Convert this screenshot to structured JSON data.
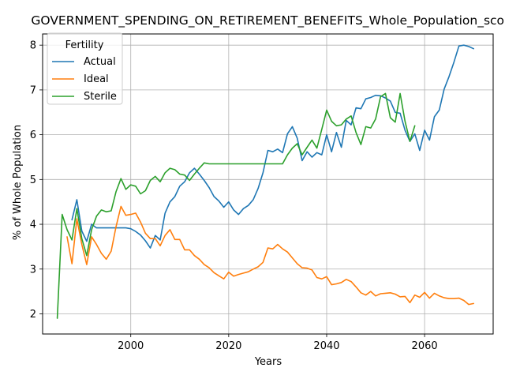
{
  "chart_data": {
    "type": "line",
    "title": "GOVERNMENT_SPENDING_ON_RETIREMENT_BENEFITS_Whole_Population_score",
    "xlabel": "Years",
    "ylabel": "% of Whole Population",
    "xlim": [
      1982,
      2074
    ],
    "ylim": [
      1.55,
      8.25
    ],
    "xticks": [
      2000,
      2020,
      2040,
      2060
    ],
    "yticks": [
      2,
      3,
      4,
      5,
      6,
      7,
      8
    ],
    "grid": true,
    "legend": {
      "title": "Fertility",
      "placement": "top-left"
    },
    "series": [
      {
        "name": "Actual",
        "color": "#1f77b4",
        "x": [
          1988,
          1989,
          1990,
          1991,
          1992,
          1993,
          1994,
          1995,
          1996,
          1997,
          1998,
          1999,
          2000,
          2001,
          2002,
          2003,
          2004,
          2005,
          2006,
          2007,
          2008,
          2009,
          2010,
          2011,
          2012,
          2013,
          2014,
          2015,
          2016,
          2017,
          2018,
          2019,
          2020,
          2021,
          2022,
          2023,
          2024,
          2025,
          2026,
          2027,
          2028,
          2029,
          2030,
          2031,
          2032,
          2033,
          2034,
          2035,
          2036,
          2037,
          2038,
          2039,
          2040,
          2041,
          2042,
          2043,
          2044,
          2045,
          2046,
          2047,
          2048,
          2049,
          2050,
          2051,
          2052,
          2053,
          2054,
          2055,
          2056,
          2057,
          2058,
          2059,
          2060,
          2061,
          2062,
          2063,
          2064,
          2065,
          2066,
          2067,
          2068,
          2069,
          2070
        ],
        "y": [
          4.1,
          4.55,
          3.85,
          3.62,
          4.0,
          3.92,
          3.92,
          3.92,
          3.92,
          3.92,
          3.92,
          3.92,
          3.9,
          3.84,
          3.76,
          3.63,
          3.47,
          3.75,
          3.65,
          4.25,
          4.5,
          4.62,
          4.85,
          4.95,
          5.15,
          5.25,
          5.12,
          4.98,
          4.82,
          4.62,
          4.52,
          4.38,
          4.5,
          4.32,
          4.22,
          4.35,
          4.42,
          4.55,
          4.8,
          5.15,
          5.65,
          5.62,
          5.68,
          5.6,
          6.02,
          6.18,
          5.92,
          5.42,
          5.62,
          5.5,
          5.6,
          5.55,
          6.0,
          5.62,
          6.05,
          5.72,
          6.32,
          6.22,
          6.6,
          6.58,
          6.8,
          6.83,
          6.88,
          6.87,
          6.82,
          6.75,
          6.5,
          6.48,
          6.1,
          5.85,
          6.02,
          5.65,
          6.1,
          5.88,
          6.4,
          6.55,
          7.02,
          7.3,
          7.62,
          7.98,
          8.0,
          7.97,
          7.92
        ]
      },
      {
        "name": "Ideal",
        "color": "#ff7f0e",
        "x": [
          1987,
          1988,
          1989,
          1990,
          1991,
          1992,
          1993,
          1994,
          1995,
          1996,
          1997,
          1998,
          1999,
          2000,
          2001,
          2002,
          2003,
          2004,
          2005,
          2006,
          2007,
          2008,
          2009,
          2010,
          2011,
          2012,
          2013,
          2014,
          2015,
          2016,
          2017,
          2018,
          2019,
          2020,
          2021,
          2022,
          2023,
          2024,
          2025,
          2026,
          2027,
          2028,
          2029,
          2030,
          2031,
          2032,
          2033,
          2034,
          2035,
          2036,
          2037,
          2038,
          2039,
          2040,
          2041,
          2042,
          2043,
          2044,
          2045,
          2046,
          2047,
          2048,
          2049,
          2050,
          2051,
          2052,
          2053,
          2054,
          2055,
          2056,
          2057,
          2058,
          2059,
          2060,
          2061,
          2062,
          2063,
          2064,
          2065,
          2066,
          2067,
          2068,
          2069,
          2070
        ],
        "y": [
          3.72,
          3.12,
          4.12,
          3.55,
          3.1,
          3.72,
          3.55,
          3.35,
          3.22,
          3.4,
          3.95,
          4.4,
          4.2,
          4.22,
          4.25,
          4.05,
          3.8,
          3.68,
          3.68,
          3.52,
          3.75,
          3.88,
          3.66,
          3.66,
          3.43,
          3.43,
          3.3,
          3.22,
          3.1,
          3.03,
          2.92,
          2.85,
          2.78,
          2.93,
          2.84,
          2.88,
          2.91,
          2.94,
          3.0,
          3.05,
          3.15,
          3.47,
          3.45,
          3.55,
          3.45,
          3.38,
          3.25,
          3.12,
          3.03,
          3.02,
          2.98,
          2.81,
          2.78,
          2.83,
          2.65,
          2.67,
          2.7,
          2.77,
          2.72,
          2.6,
          2.47,
          2.42,
          2.5,
          2.4,
          2.45,
          2.46,
          2.47,
          2.44,
          2.38,
          2.39,
          2.25,
          2.42,
          2.37,
          2.48,
          2.35,
          2.46,
          2.4,
          2.36,
          2.34,
          2.34,
          2.35,
          2.3,
          2.21,
          2.23
        ]
      },
      {
        "name": "Sterile",
        "color": "#2ca02c",
        "x": [
          1985,
          1986,
          1987,
          1988,
          1989,
          1990,
          1991,
          1992,
          1993,
          1994,
          1995,
          1996,
          1997,
          1998,
          1999,
          2000,
          2001,
          2002,
          2003,
          2004,
          2005,
          2006,
          2007,
          2008,
          2009,
          2010,
          2011,
          2012,
          2013,
          2014,
          2015,
          2016,
          2017,
          2018,
          2019,
          2020,
          2021,
          2022,
          2023,
          2024,
          2025,
          2026,
          2027,
          2028,
          2029,
          2030,
          2031,
          2032,
          2033,
          2034,
          2035,
          2036,
          2037,
          2038,
          2039,
          2040,
          2041,
          2042,
          2043,
          2044,
          2045,
          2046,
          2047,
          2048,
          2049,
          2050,
          2051,
          2052,
          2053,
          2054,
          2055,
          2056,
          2057,
          2058
        ],
        "y": [
          1.9,
          4.22,
          3.88,
          3.65,
          4.35,
          3.68,
          3.3,
          3.88,
          4.18,
          4.32,
          4.28,
          4.3,
          4.73,
          5.02,
          4.78,
          4.88,
          4.85,
          4.68,
          4.75,
          4.98,
          5.07,
          4.95,
          5.15,
          5.25,
          5.22,
          5.12,
          5.1,
          4.98,
          5.12,
          5.25,
          5.37,
          5.35,
          5.35,
          5.35,
          5.35,
          5.35,
          5.35,
          5.35,
          5.35,
          5.35,
          5.35,
          5.35,
          5.35,
          5.35,
          5.35,
          5.35,
          5.35,
          5.55,
          5.7,
          5.8,
          5.55,
          5.72,
          5.88,
          5.7,
          6.12,
          6.55,
          6.3,
          6.2,
          6.22,
          6.35,
          6.42,
          6.05,
          5.78,
          6.18,
          6.15,
          6.35,
          6.85,
          6.92,
          6.38,
          6.28,
          6.92,
          6.3,
          5.85,
          6.2
        ]
      }
    ]
  }
}
